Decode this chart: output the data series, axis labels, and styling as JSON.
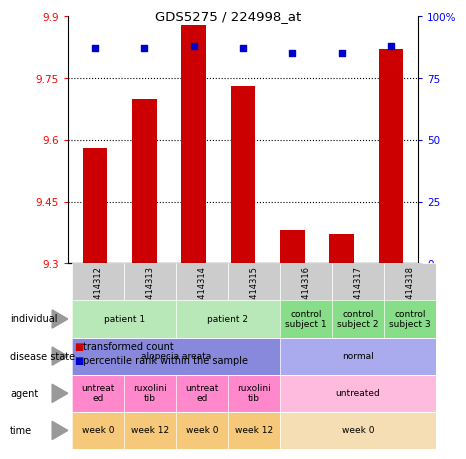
{
  "title": "GDS5275 / 224998_at",
  "samples": [
    "GSM1414312",
    "GSM1414313",
    "GSM1414314",
    "GSM1414315",
    "GSM1414316",
    "GSM1414317",
    "GSM1414318"
  ],
  "transformed_counts": [
    9.58,
    9.7,
    9.88,
    9.73,
    9.38,
    9.37,
    9.82
  ],
  "percentile_ranks": [
    87,
    87,
    88,
    87,
    85,
    85,
    88
  ],
  "ylim_left": [
    9.3,
    9.9
  ],
  "ylim_right": [
    0,
    100
  ],
  "yticks_left": [
    9.3,
    9.45,
    9.6,
    9.75,
    9.9
  ],
  "yticks_right": [
    0,
    25,
    50,
    75,
    100
  ],
  "ytick_labels_left": [
    "9.3",
    "9.45",
    "9.6",
    "9.75",
    "9.9"
  ],
  "ytick_labels_right": [
    "0",
    "25",
    "50",
    "75",
    "100%"
  ],
  "hlines": [
    9.45,
    9.6,
    9.75
  ],
  "bar_color": "#cc0000",
  "dot_color": "#0000cc",
  "bar_width": 0.5,
  "individual_row": {
    "label": "individual",
    "groups": [
      {
        "text": "patient 1",
        "cols": [
          0,
          1
        ],
        "color": "#b8e8b8"
      },
      {
        "text": "patient 2",
        "cols": [
          2,
          3
        ],
        "color": "#b8e8b8"
      },
      {
        "text": "control\nsubject 1",
        "cols": [
          4
        ],
        "color": "#88dd88"
      },
      {
        "text": "control\nsubject 2",
        "cols": [
          5
        ],
        "color": "#88dd88"
      },
      {
        "text": "control\nsubject 3",
        "cols": [
          6
        ],
        "color": "#88dd88"
      }
    ]
  },
  "disease_state_row": {
    "label": "disease state",
    "groups": [
      {
        "text": "alopecia areata",
        "cols": [
          0,
          1,
          2,
          3
        ],
        "color": "#8888dd"
      },
      {
        "text": "normal",
        "cols": [
          4,
          5,
          6
        ],
        "color": "#aaaaee"
      }
    ]
  },
  "agent_row": {
    "label": "agent",
    "groups": [
      {
        "text": "untreat\ned",
        "cols": [
          0
        ],
        "color": "#ff88cc"
      },
      {
        "text": "ruxolini\ntib",
        "cols": [
          1
        ],
        "color": "#ff88cc"
      },
      {
        "text": "untreat\ned",
        "cols": [
          2
        ],
        "color": "#ff88cc"
      },
      {
        "text": "ruxolini\ntib",
        "cols": [
          3
        ],
        "color": "#ff88cc"
      },
      {
        "text": "untreated",
        "cols": [
          4,
          5,
          6
        ],
        "color": "#ffbbdd"
      }
    ]
  },
  "time_row": {
    "label": "time",
    "groups": [
      {
        "text": "week 0",
        "cols": [
          0
        ],
        "color": "#f5c87a"
      },
      {
        "text": "week 12",
        "cols": [
          1
        ],
        "color": "#f5c87a"
      },
      {
        "text": "week 0",
        "cols": [
          2
        ],
        "color": "#f5c87a"
      },
      {
        "text": "week 12",
        "cols": [
          3
        ],
        "color": "#f5c87a"
      },
      {
        "text": "week 0",
        "cols": [
          4,
          5,
          6
        ],
        "color": "#f5deb3"
      }
    ]
  },
  "legend_items": [
    {
      "color": "#cc0000",
      "label": "transformed count"
    },
    {
      "color": "#0000cc",
      "label": "percentile rank within the sample"
    }
  ]
}
